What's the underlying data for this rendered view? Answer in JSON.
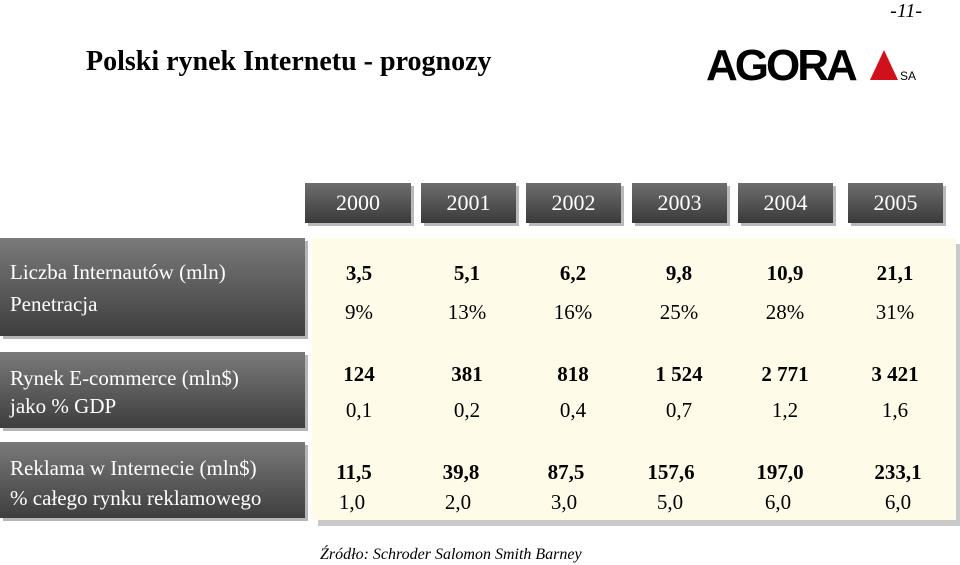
{
  "page_number": "-11-",
  "title": "Polski rynek Internetu - prognozy",
  "logo": {
    "text": "AGORA",
    "suffix": "SA"
  },
  "years": [
    "2000",
    "2001",
    "2002",
    "2003",
    "2004",
    "2005"
  ],
  "rows": [
    {
      "label_main": "Liczba Internautów (mln)",
      "label_sub": "Penetracja",
      "values_main": [
        "3,5",
        "5,1",
        "6,2",
        "9,8",
        "10,9",
        "21,1"
      ],
      "values_sub": [
        "9%",
        "13%",
        "16%",
        "25%",
        "28%",
        "31%"
      ]
    },
    {
      "label_main": "Rynek E-commerce (mln$)",
      "label_sub": "jako % GDP",
      "values_main": [
        "124",
        "381",
        "818",
        "1 524",
        "2 771",
        "3 421"
      ],
      "values_sub": [
        "0,1",
        "0,2",
        "0,4",
        "0,7",
        "1,2",
        "1,6"
      ]
    },
    {
      "label_main": "Reklama w Internecie (mln$)",
      "label_sub": "% całego rynku reklamowego",
      "values_main": [
        "11,5",
        "39,8",
        "87,5",
        "157,6",
        "197,0",
        "233,1"
      ],
      "values_sub": [
        "1,0",
        "2,0",
        "3,0",
        "5,0",
        "6,0",
        "6,0"
      ]
    }
  ],
  "source": "Źródło: Schroder Salomon Smith Barney",
  "colors": {
    "header_dark": "#3a3a3a",
    "panel_bg": "#fffbe9",
    "logo_red": "#d0101a"
  }
}
